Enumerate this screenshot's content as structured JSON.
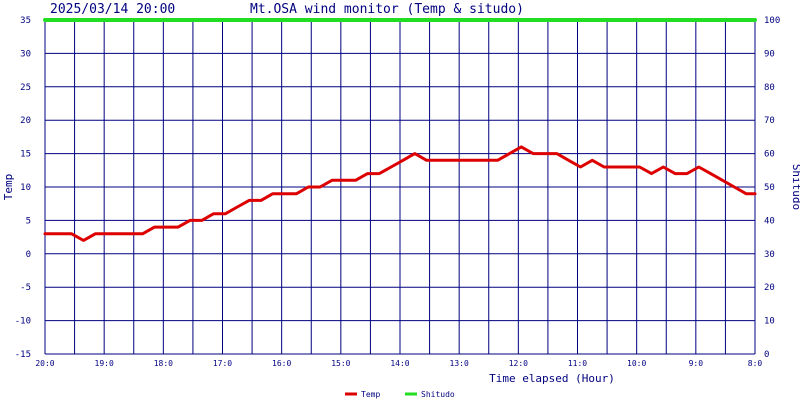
{
  "chart_data": {
    "type": "line",
    "header": {
      "datetime": "2025/03/14 20:00",
      "title": "Mt.OSA wind monitor (Temp & situdo)"
    },
    "xlabel": "Time elapsed (Hour)",
    "ylabel_left": "Temp",
    "ylabel_right": "Shitudo",
    "x_tick_labels": [
      "20:0",
      "19:0",
      "18:0",
      "17:0",
      "16:0",
      "15:0",
      "14:0",
      "13:0",
      "12:0",
      "11:0",
      "10:0",
      "9:0",
      "8:0"
    ],
    "x_reversed": true,
    "xlim": [
      0,
      12
    ],
    "ylim_left": [
      -15,
      35
    ],
    "ylim_right": [
      0,
      100
    ],
    "y_ticks_left": [
      -15,
      -10,
      -5,
      0,
      5,
      10,
      15,
      20,
      25,
      30,
      35
    ],
    "y_ticks_right": [
      0,
      10,
      20,
      30,
      40,
      50,
      60,
      70,
      80,
      90,
      100
    ],
    "grid": true,
    "legend_position": "bottom-center",
    "colors": {
      "temp": "#dd0000",
      "shitudo": "#22dd22",
      "grid": "#000080",
      "text": "#000080"
    },
    "series": [
      {
        "name": "Temp",
        "axis": "left",
        "x": [
          0,
          0.25,
          0.45,
          0.65,
          0.85,
          1.05,
          1.25,
          1.45,
          1.65,
          1.85,
          2.05,
          2.25,
          2.45,
          2.65,
          2.85,
          3.05,
          3.25,
          3.45,
          3.65,
          3.85,
          4.05,
          4.25,
          4.45,
          4.65,
          4.85,
          5.05,
          5.25,
          5.45,
          5.65,
          5.85,
          6.05,
          6.25,
          6.45,
          6.65,
          6.85,
          7.05,
          7.25,
          7.45,
          7.65,
          7.85,
          8.05,
          8.25,
          8.45,
          8.65,
          8.85,
          9.05,
          9.25,
          9.45,
          9.65,
          9.85,
          10.05,
          10.25,
          10.45,
          10.65,
          10.85,
          11.05,
          11.25,
          11.45,
          11.65,
          11.85,
          12
        ],
        "values": [
          3,
          3,
          3,
          2,
          3,
          3,
          3,
          3,
          3,
          4,
          4,
          4,
          5,
          5,
          6,
          6,
          7,
          8,
          8,
          9,
          9,
          9,
          10,
          10,
          11,
          11,
          11,
          12,
          12,
          13,
          14,
          15,
          14,
          14,
          14,
          14,
          14,
          14,
          14,
          15,
          16,
          15,
          15,
          15,
          14,
          13,
          14,
          13,
          13,
          13,
          13,
          12,
          13,
          12,
          12,
          13,
          12,
          11,
          10,
          9,
          9
        ]
      },
      {
        "name": "Shitudo",
        "axis": "right",
        "x": [
          0,
          12
        ],
        "values": [
          100,
          100
        ]
      }
    ]
  }
}
